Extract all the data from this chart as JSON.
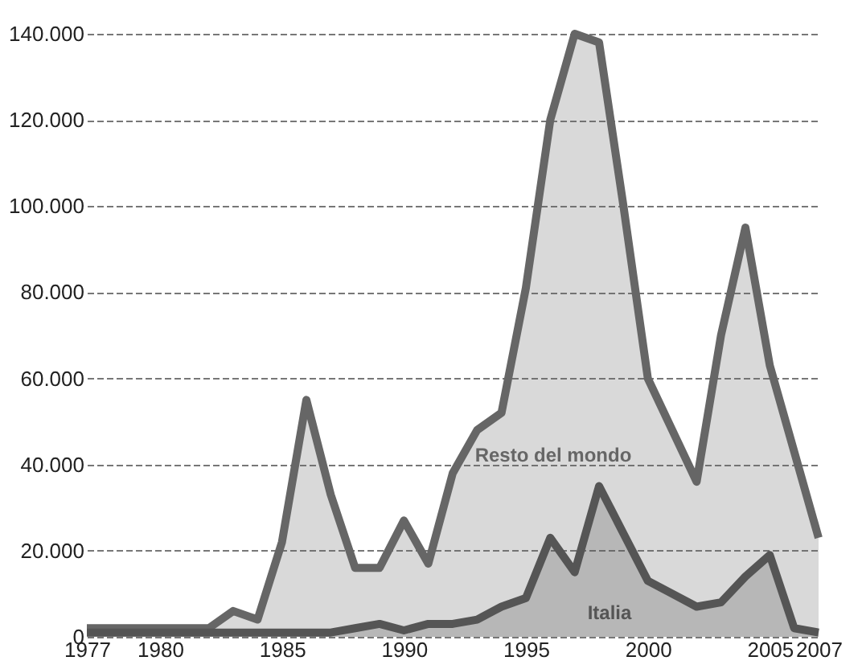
{
  "chart_data": {
    "type": "area",
    "x": [
      1977,
      1978,
      1979,
      1980,
      1981,
      1982,
      1983,
      1984,
      1985,
      1986,
      1987,
      1988,
      1989,
      1990,
      1991,
      1992,
      1993,
      1994,
      1995,
      1996,
      1997,
      1998,
      1999,
      2000,
      2001,
      2002,
      2003,
      2004,
      2005,
      2006,
      2007
    ],
    "series": [
      {
        "name": "Resto del mondo",
        "color": "#666666",
        "values": [
          2000,
          2000,
          2000,
          2000,
          2000,
          2000,
          6000,
          4000,
          22000,
          55000,
          33000,
          16000,
          16000,
          27000,
          17000,
          38000,
          48000,
          52000,
          81000,
          120000,
          140000,
          138000,
          100000,
          60000,
          48000,
          36000,
          70000,
          95000,
          63000,
          43000,
          23000
        ]
      },
      {
        "name": "Italia",
        "color": "#555555",
        "values": [
          1000,
          1000,
          1000,
          1000,
          1000,
          1000,
          1000,
          1000,
          1000,
          1000,
          1000,
          2000,
          3000,
          1500,
          3000,
          3000,
          4000,
          7000,
          9000,
          23000,
          15000,
          35000,
          24000,
          13000,
          10000,
          7000,
          8000,
          14000,
          19000,
          2000,
          1000
        ]
      }
    ],
    "xlim": [
      1977,
      2007
    ],
    "xticks": [
      1977,
      1980,
      1985,
      1990,
      1995,
      2000,
      2005,
      2007
    ],
    "ylim": [
      0,
      140000
    ],
    "yticks": [
      0,
      {
        "value": 20000,
        "label": "20.000"
      },
      {
        "value": 40000,
        "label": "40.000"
      },
      {
        "value": 60000,
        "label": "60.000"
      },
      {
        "value": 80000,
        "label": "80.000"
      },
      {
        "value": 100000,
        "label": "100.000"
      },
      {
        "value": 120000,
        "label": "120.000"
      },
      {
        "value": 140000,
        "label": "140.000"
      }
    ],
    "grid": "y"
  }
}
